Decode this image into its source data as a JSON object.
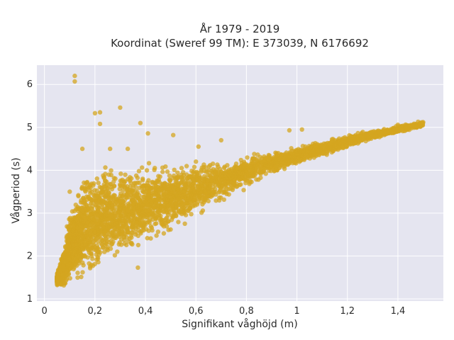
{
  "chart_data": {
    "type": "scatter",
    "title_line1": "År 1979 - 2019",
    "title_line2": "Koordinat (Sweref 99 TM): E 373039, N 6176692",
    "xlabel": "Signifikant våghöjd (m)",
    "ylabel": "Vågperiod (s)",
    "xlim": [
      -0.03,
      1.58
    ],
    "ylim": [
      0.95,
      6.45
    ],
    "xticks": [
      0,
      0.2,
      0.4,
      0.6,
      0.8,
      1.0,
      1.2,
      1.4
    ],
    "xtick_labels": [
      "0",
      "0,2",
      "0,4",
      "0,6",
      "0,8",
      "1",
      "1,2",
      "1,4"
    ],
    "yticks": [
      1,
      2,
      3,
      4,
      5,
      6
    ],
    "ytick_labels": [
      "1",
      "2",
      "3",
      "4",
      "5",
      "6"
    ],
    "grid": true,
    "background_color": "#e5e5f0",
    "point_color": "#d4a520",
    "series": [
      {
        "band_envelope": {
          "x": [
            0.05,
            0.08,
            0.1,
            0.15,
            0.2,
            0.25,
            0.3,
            0.4,
            0.5,
            0.6,
            0.7,
            0.8,
            0.9,
            1.0,
            1.1,
            1.2,
            1.3,
            1.4,
            1.5
          ],
          "y_low": [
            1.3,
            1.2,
            1.2,
            1.25,
            1.4,
            1.6,
            1.8,
            2.15,
            2.5,
            2.85,
            3.2,
            3.55,
            3.85,
            4.1,
            4.3,
            4.5,
            4.7,
            4.85,
            5.0
          ],
          "y_high": [
            1.6,
            2.3,
            3.2,
            4.0,
            4.2,
            4.25,
            4.25,
            4.2,
            4.2,
            4.25,
            4.3,
            4.4,
            4.5,
            4.6,
            4.7,
            4.85,
            4.95,
            5.05,
            5.15
          ]
        },
        "outliers": [
          {
            "x": 0.12,
            "y": 6.2
          },
          {
            "x": 0.12,
            "y": 6.07
          },
          {
            "x": 0.2,
            "y": 5.33
          },
          {
            "x": 0.22,
            "y": 5.35
          },
          {
            "x": 0.3,
            "y": 5.46
          },
          {
            "x": 0.22,
            "y": 5.08
          },
          {
            "x": 0.38,
            "y": 5.1
          },
          {
            "x": 0.41,
            "y": 4.86
          },
          {
            "x": 0.51,
            "y": 4.82
          },
          {
            "x": 0.15,
            "y": 4.5
          },
          {
            "x": 0.33,
            "y": 4.5
          },
          {
            "x": 0.61,
            "y": 4.55
          },
          {
            "x": 0.7,
            "y": 4.7
          },
          {
            "x": 0.97,
            "y": 4.93
          },
          {
            "x": 1.02,
            "y": 4.95
          },
          {
            "x": 0.26,
            "y": 4.5
          },
          {
            "x": 0.1,
            "y": 3.5
          },
          {
            "x": 0.37,
            "y": 1.73
          },
          {
            "x": 0.6,
            "y": 4.2
          },
          {
            "x": 1.5,
            "y": 5.12
          },
          {
            "x": 1.48,
            "y": 5.13
          },
          {
            "x": 1.4,
            "y": 5.06
          },
          {
            "x": 1.45,
            "y": 5.04
          }
        ]
      }
    ]
  }
}
